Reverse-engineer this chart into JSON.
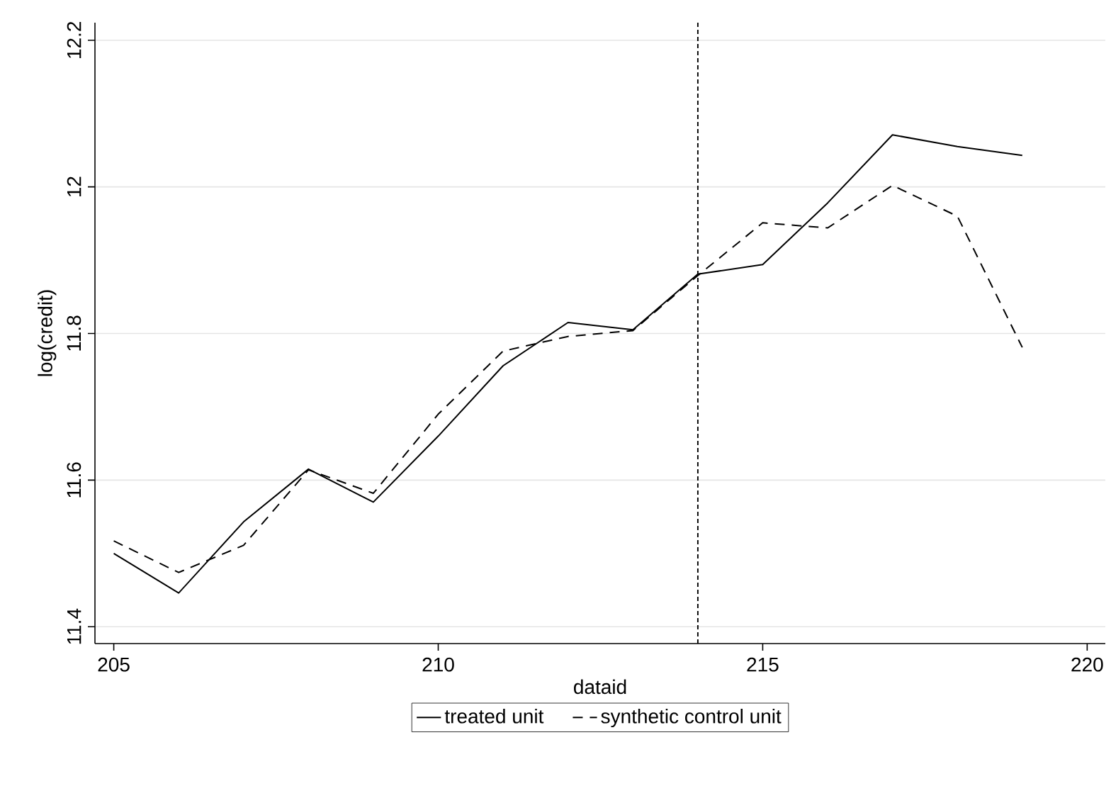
{
  "chart_data": {
    "type": "line",
    "xlabel": "dataid",
    "ylabel": "log(credit)",
    "x": [
      205,
      206,
      207,
      208,
      209,
      210,
      211,
      212,
      213,
      214,
      215,
      216,
      217,
      218,
      219
    ],
    "series": [
      {
        "name": "treated unit",
        "color": "#000000",
        "line_style": "solid",
        "values": [
          11.5,
          11.446,
          11.543,
          11.615,
          11.57,
          11.66,
          11.756,
          11.815,
          11.805,
          11.881,
          11.894,
          11.978,
          12.071,
          12.055,
          12.043
        ]
      },
      {
        "name": "synthetic control unit",
        "color": "#000000",
        "line_style": "dashed",
        "values": [
          11.517,
          11.474,
          11.511,
          11.614,
          11.582,
          11.69,
          11.776,
          11.796,
          11.804,
          11.879,
          11.951,
          11.944,
          12.002,
          11.96,
          11.781
        ]
      }
    ],
    "xlim": [
      204.71,
      220.28
    ],
    "ylim": [
      11.377,
      12.224
    ],
    "xticks": [
      205,
      210,
      215,
      220
    ],
    "yticks": [
      11.4,
      11.6,
      11.8,
      12,
      12.2
    ],
    "grid": "y",
    "legend": "bottom",
    "marker": "none",
    "ref_lines": [
      {
        "axis": "x",
        "value": 214,
        "line_style": "dotted",
        "color": "#000000"
      }
    ]
  }
}
